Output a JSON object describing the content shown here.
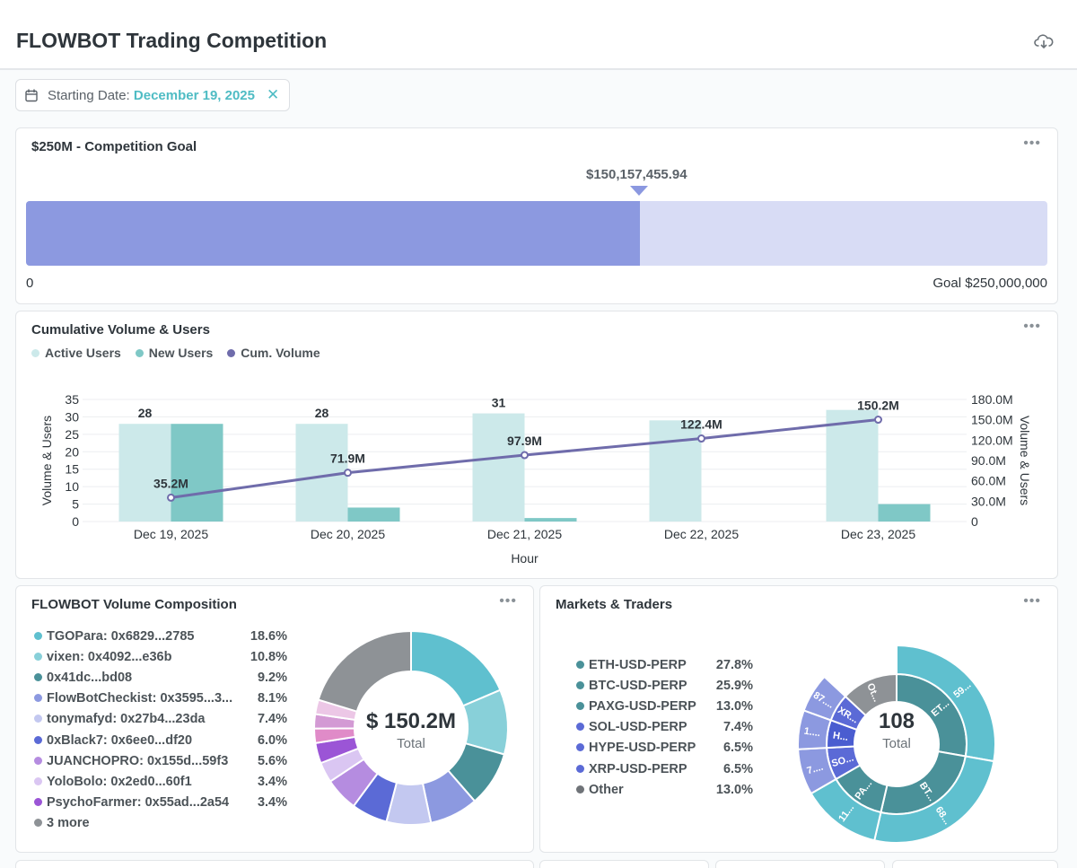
{
  "header": {
    "title": "FLOWBOT Trading Competition",
    "download_icon": "cloud-download-icon"
  },
  "filter": {
    "label": "Starting Date:",
    "value": "December 19, 2025",
    "clear_icon": "close-icon"
  },
  "goal_card": {
    "title": "$250M - Competition Goal",
    "current_label": "$150,157,455.94",
    "current": 150157455.94,
    "goal": 250000000,
    "zero_label": "0",
    "goal_label": "Goal $250,000,000",
    "colors": {
      "fill": "#8c99e0",
      "track": "#d8dcf5"
    }
  },
  "volume_card": {
    "title": "Cumulative Volume & Users",
    "legend": [
      {
        "label": "Active Users",
        "color": "#cce9ea"
      },
      {
        "label": "New Users",
        "color": "#7fc8c6"
      },
      {
        "label": "Cum. Volume",
        "color": "#6f6cab"
      }
    ]
  },
  "composition_card": {
    "title": "FLOWBOT Volume Composition",
    "items": [
      {
        "label": "TGOPara: 0x6829...2785",
        "pct": "18.6%",
        "color": "#5fc0cf"
      },
      {
        "label": "vixen: 0x4092...e36b",
        "pct": "10.8%",
        "color": "#88d0d9"
      },
      {
        "label": "0x41dc...bd08",
        "pct": "9.2%",
        "color": "#4a9199"
      },
      {
        "label": "FlowBotCheckist: 0x3595...3...",
        "pct": "8.1%",
        "color": "#8c99e0"
      },
      {
        "label": "tonymafyd: 0x27b4...23da",
        "pct": "7.4%",
        "color": "#c3c8f0"
      },
      {
        "label": "0xBlack7: 0x6ee0...df20",
        "pct": "6.0%",
        "color": "#5b6ad6"
      },
      {
        "label": "JUANCHOPRO: 0x155d...59f3",
        "pct": "5.6%",
        "color": "#b58ce0"
      },
      {
        "label": "YoloBolo: 0x2ed0...60f1",
        "pct": "3.4%",
        "color": "#dac6f2"
      },
      {
        "label": "PsychoFarmer: 0x55ad...2a54",
        "pct": "3.4%",
        "color": "#9b55d6"
      },
      {
        "label": "3 more",
        "pct": "",
        "color": "#8e9296"
      }
    ],
    "center_value": "$ 150.2M",
    "center_label": "Total"
  },
  "markets_card": {
    "title": "Markets & Traders",
    "items": [
      {
        "label": "ETH-USD-PERP",
        "pct": "27.8%",
        "color": "#4a9199"
      },
      {
        "label": "BTC-USD-PERP",
        "pct": "25.9%",
        "color": "#4a9199"
      },
      {
        "label": "PAXG-USD-PERP",
        "pct": "13.0%",
        "color": "#4a9199"
      },
      {
        "label": "SOL-USD-PERP",
        "pct": "7.4%",
        "color": "#5b6ad6"
      },
      {
        "label": "HYPE-USD-PERP",
        "pct": "6.5%",
        "color": "#5b6ad6"
      },
      {
        "label": "XRP-USD-PERP",
        "pct": "6.5%",
        "color": "#5b6ad6"
      },
      {
        "label": "Other",
        "pct": "13.0%",
        "color": "#6f7378"
      }
    ],
    "center_value": "108",
    "center_label": "Total",
    "sunburst_labels": [
      "ET...",
      "59...",
      "BT...",
      "68...",
      "PA...",
      "11...",
      "SO...",
      "7....",
      "H...",
      "1....",
      "XR...",
      "87....",
      "Ot..."
    ]
  },
  "chart_data": {
    "type": "bar",
    "title": "Cumulative Volume & Users",
    "categories": [
      "Dec 19, 2025",
      "Dec 20, 2025",
      "Dec 21, 2025",
      "Dec 22, 2025",
      "Dec 23, 2025"
    ],
    "series": [
      {
        "name": "Active Users",
        "type": "bar",
        "axis": "left",
        "values": [
          28,
          28,
          31,
          29,
          32
        ],
        "labels": [
          "28",
          "28",
          "31",
          "",
          ""
        ]
      },
      {
        "name": "New Users",
        "type": "bar",
        "axis": "left",
        "values": [
          28,
          4,
          1,
          0,
          5
        ]
      },
      {
        "name": "Cum. Volume",
        "type": "line",
        "axis": "right",
        "values": [
          35.2,
          71.9,
          97.9,
          122.4,
          150.2
        ],
        "labels": [
          "35.2M",
          "71.9M",
          "97.9M",
          "122.4M",
          "150.2M"
        ]
      }
    ],
    "xlabel": "Hour",
    "ylabel": "Volume & Users",
    "y2label": "Volume & Users",
    "ylim": [
      0,
      35
    ],
    "yticks": [
      "0",
      "5",
      "10",
      "15",
      "20",
      "25",
      "30",
      "35"
    ],
    "y2lim": [
      0,
      180
    ],
    "y2ticks": [
      "0",
      "30.0M",
      "60.0M",
      "90.0M",
      "120.0M",
      "150.0M",
      "180.0M"
    ]
  }
}
